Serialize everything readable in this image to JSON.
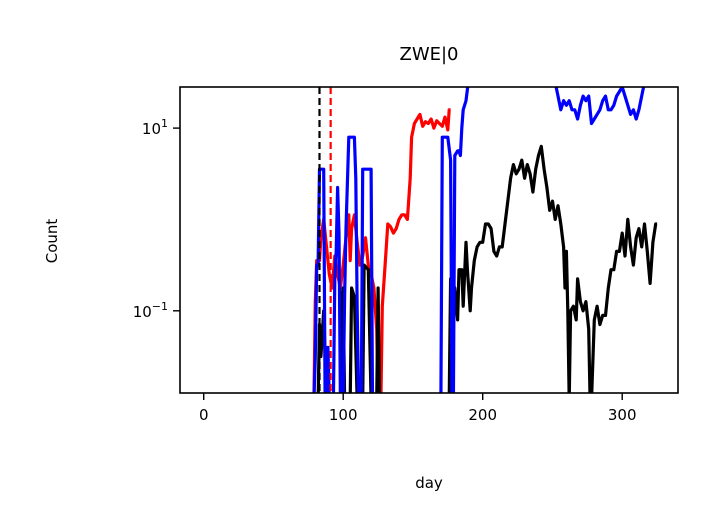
{
  "chart_data": {
    "type": "line",
    "title": "ZWE|0",
    "xlabel": "day",
    "ylabel": "Count",
    "xlim": [
      -17,
      340
    ],
    "ylim_log10": [
      -1.9,
      1.45
    ],
    "y_scale": "log",
    "grid": false,
    "legend": "none",
    "x_ticks": [
      {
        "value": 0,
        "label": "0"
      },
      {
        "value": 100,
        "label": "100"
      },
      {
        "value": 200,
        "label": "200"
      },
      {
        "value": 300,
        "label": "300"
      }
    ],
    "y_ticks": [
      {
        "log10": -1,
        "label": "10",
        "exp": "−1"
      },
      {
        "log10": 1,
        "label": "10",
        "exp": "1"
      }
    ],
    "vlines": [
      {
        "x": 83,
        "color": "#000000",
        "style": "dashed"
      },
      {
        "x": 91,
        "color": "#ff0000",
        "style": "dashed"
      }
    ],
    "series": [
      {
        "color": "#ff0000",
        "log10_points": [
          [
            0,
            -1.98
          ],
          [
            79,
            -1.98
          ],
          [
            80,
            -0.9
          ],
          [
            81,
            -0.45
          ],
          [
            82,
            -0.45
          ],
          [
            83,
            -0.45
          ],
          [
            84,
            -0.2
          ],
          [
            86,
            0
          ],
          [
            88,
            -0.3
          ],
          [
            90,
            -0.6
          ],
          [
            92,
            -0.75
          ],
          [
            94,
            -0.4
          ],
          [
            96,
            -0.6
          ],
          [
            98,
            -0.75
          ],
          [
            100,
            -0.5
          ],
          [
            102,
            -0.2
          ],
          [
            104,
            0.05
          ],
          [
            105,
            -0.45
          ],
          [
            106,
            -0.1
          ],
          [
            108,
            0.05
          ],
          [
            110,
            -0.25
          ],
          [
            112,
            -0.5
          ],
          [
            114,
            -0.4
          ],
          [
            116,
            -0.2
          ],
          [
            118,
            -0.5
          ],
          [
            120,
            -0.6
          ],
          [
            122,
            -0.75
          ],
          [
            124,
            -1.2
          ],
          [
            125,
            -1.98
          ],
          [
            127,
            -1.98
          ],
          [
            128,
            -0.95
          ],
          [
            130,
            -0.5
          ],
          [
            132,
            -0.05
          ],
          [
            134,
            -0.08
          ],
          [
            136,
            -0.15
          ],
          [
            138,
            -0.1
          ],
          [
            140,
            0
          ],
          [
            142,
            0.05
          ],
          [
            144,
            0.05
          ],
          [
            146,
            0
          ],
          [
            148,
            0.45
          ],
          [
            149,
            0.9
          ],
          [
            151,
            1.05
          ],
          [
            153,
            1.1
          ],
          [
            155,
            1.15
          ],
          [
            157,
            1.02
          ],
          [
            159,
            1.07
          ],
          [
            161,
            1.05
          ],
          [
            163,
            1.1
          ],
          [
            165,
            1.0
          ],
          [
            167,
            1.08
          ],
          [
            169,
            1.05
          ],
          [
            171,
            1.02
          ],
          [
            173,
            1.12
          ],
          [
            175,
            0.98
          ],
          [
            176,
            1.2
          ],
          [
            177,
            1.2
          ]
        ]
      },
      {
        "color": "#000000",
        "log10_points": [
          [
            0,
            -1.98
          ],
          [
            82,
            -1.98
          ],
          [
            83,
            -1.15
          ],
          [
            84,
            -1.5
          ],
          [
            86,
            -1.0
          ],
          [
            88,
            -1.98
          ],
          [
            98,
            -1.98
          ],
          [
            99,
            -0.85
          ],
          [
            100,
            -0.75
          ],
          [
            101,
            -1.98
          ],
          [
            105,
            -1.98
          ],
          [
            106,
            -0.75
          ],
          [
            108,
            -0.85
          ],
          [
            110,
            -1.98
          ],
          [
            114,
            -1.98
          ],
          [
            115,
            -0.5
          ],
          [
            118,
            -0.55
          ],
          [
            120,
            -1.98
          ],
          [
            124,
            -1.98
          ],
          [
            125,
            -0.75
          ],
          [
            126,
            -1.98
          ],
          [
            176,
            -1.98
          ],
          [
            177,
            -0.65
          ],
          [
            180,
            -0.75
          ],
          [
            182,
            -1.1
          ],
          [
            183,
            -0.55
          ],
          [
            185,
            -0.55
          ],
          [
            186,
            -0.95
          ],
          [
            188,
            -0.25
          ],
          [
            189,
            -0.55
          ],
          [
            191,
            -1.0
          ],
          [
            192,
            -0.75
          ],
          [
            194,
            -0.45
          ],
          [
            196,
            -0.3
          ],
          [
            198,
            -0.25
          ],
          [
            200,
            -0.25
          ],
          [
            202,
            -0.05
          ],
          [
            204,
            -0.05
          ],
          [
            206,
            -0.1
          ],
          [
            208,
            -0.35
          ],
          [
            210,
            -0.4
          ],
          [
            212,
            -0.3
          ],
          [
            214,
            -0.3
          ],
          [
            216,
            -0.05
          ],
          [
            218,
            0.2
          ],
          [
            220,
            0.45
          ],
          [
            222,
            0.6
          ],
          [
            224,
            0.5
          ],
          [
            226,
            0.55
          ],
          [
            228,
            0.65
          ],
          [
            230,
            0.45
          ],
          [
            232,
            0.6
          ],
          [
            234,
            0.5
          ],
          [
            236,
            0.3
          ],
          [
            238,
            0.55
          ],
          [
            240,
            0.7
          ],
          [
            242,
            0.8
          ],
          [
            244,
            0.55
          ],
          [
            246,
            0.35
          ],
          [
            248,
            0.1
          ],
          [
            250,
            0.2
          ],
          [
            252,
            0.0
          ],
          [
            254,
            0.15
          ],
          [
            256,
            -0.05
          ],
          [
            258,
            -0.3
          ],
          [
            259,
            -0.75
          ],
          [
            260,
            -0.35
          ],
          [
            261,
            -1.0
          ],
          [
            262,
            -1.98
          ],
          [
            263,
            -1.0
          ],
          [
            265,
            -0.95
          ],
          [
            267,
            -1.1
          ],
          [
            268,
            -0.65
          ],
          [
            270,
            -0.9
          ],
          [
            272,
            -1.0
          ],
          [
            274,
            -0.9
          ],
          [
            276,
            -1.2
          ],
          [
            277,
            -1.98
          ],
          [
            278,
            -1.98
          ],
          [
            280,
            -1.1
          ],
          [
            282,
            -0.95
          ],
          [
            284,
            -1.15
          ],
          [
            286,
            -1.05
          ],
          [
            288,
            -1.05
          ],
          [
            290,
            -0.75
          ],
          [
            292,
            -0.55
          ],
          [
            294,
            -0.55
          ],
          [
            296,
            -0.35
          ],
          [
            298,
            -0.35
          ],
          [
            300,
            -0.15
          ],
          [
            302,
            -0.4
          ],
          [
            304,
            0.0
          ],
          [
            306,
            -0.3
          ],
          [
            308,
            -0.5
          ],
          [
            310,
            -0.2
          ],
          [
            312,
            -0.1
          ],
          [
            314,
            -0.3
          ],
          [
            316,
            -0.05
          ],
          [
            318,
            -0.35
          ],
          [
            320,
            -0.7
          ],
          [
            322,
            -0.25
          ],
          [
            324,
            -0.05
          ],
          [
            325,
            -0.05
          ]
        ]
      },
      {
        "color": "#0000ff",
        "log10_points": [
          [
            0,
            -1.98
          ],
          [
            79,
            -1.98
          ],
          [
            80,
            -1.5
          ],
          [
            81,
            -0.5
          ],
          [
            82,
            -0.5
          ],
          [
            83,
            0.55
          ],
          [
            84,
            0.55
          ],
          [
            86,
            0.55
          ],
          [
            87,
            -1.98
          ],
          [
            88,
            -1.98
          ],
          [
            89,
            -1.4
          ],
          [
            90,
            -1.98
          ],
          [
            93,
            -1.98
          ],
          [
            94,
            -0.65
          ],
          [
            95,
            -0.35
          ],
          [
            96,
            0.35
          ],
          [
            97,
            -0.15
          ],
          [
            98,
            -1.98
          ],
          [
            100,
            -1.98
          ],
          [
            101,
            -0.85
          ],
          [
            102,
            -0.1
          ],
          [
            104,
            0.9
          ],
          [
            105,
            0.9
          ],
          [
            106,
            0.9
          ],
          [
            107,
            0.9
          ],
          [
            108,
            0.9
          ],
          [
            109,
            0.45
          ],
          [
            110,
            -1.0
          ],
          [
            111,
            -1.98
          ],
          [
            113,
            -1.98
          ],
          [
            114,
            0.55
          ],
          [
            116,
            0.55
          ],
          [
            118,
            0.55
          ],
          [
            120,
            0.55
          ],
          [
            121,
            -1.98
          ],
          [
            170,
            -1.98
          ],
          [
            171,
            0.9
          ],
          [
            173,
            0.9
          ],
          [
            175,
            0.9
          ],
          [
            177,
            0.65
          ],
          [
            178,
            -1.98
          ],
          [
            179,
            -1.98
          ],
          [
            180,
            0.7
          ],
          [
            182,
            0.75
          ],
          [
            183,
            0.75
          ],
          [
            184,
            0.7
          ],
          [
            185,
            1.0
          ],
          [
            186,
            1.2
          ],
          [
            188,
            1.3
          ],
          [
            190,
            1.55
          ],
          [
            192,
            1.55
          ],
          [
            194,
            1.8
          ],
          [
            196,
            2.0
          ],
          [
            198,
            1.95
          ],
          [
            200,
            1.95
          ],
          [
            202,
            2.1
          ],
          [
            204,
            2.05
          ],
          [
            206,
            2.1
          ],
          [
            208,
            2.2
          ],
          [
            210,
            2.15
          ],
          [
            212,
            2.2
          ],
          [
            214,
            2.4
          ],
          [
            216,
            2.55
          ],
          [
            218,
            2.6
          ],
          [
            220,
            2.5
          ],
          [
            222,
            2.2
          ],
          [
            224,
            2.1
          ],
          [
            226,
            2.0
          ],
          [
            228,
            2.05
          ],
          [
            230,
            2.0
          ],
          [
            232,
            2.1
          ],
          [
            234,
            2.2
          ],
          [
            236,
            2.15
          ],
          [
            238,
            2.1
          ],
          [
            240,
            2.2
          ],
          [
            242,
            2.0
          ],
          [
            244,
            2.1
          ],
          [
            246,
            2.0
          ],
          [
            248,
            1.85
          ],
          [
            250,
            1.85
          ],
          [
            252,
            1.5
          ],
          [
            254,
            1.35
          ],
          [
            256,
            1.2
          ],
          [
            258,
            1.3
          ],
          [
            260,
            1.25
          ],
          [
            262,
            1.3
          ],
          [
            264,
            1.2
          ],
          [
            266,
            1.2
          ],
          [
            268,
            1.1
          ],
          [
            270,
            1.25
          ],
          [
            272,
            1.35
          ],
          [
            274,
            1.3
          ],
          [
            276,
            1.35
          ],
          [
            278,
            1.05
          ],
          [
            280,
            1.1
          ],
          [
            282,
            1.15
          ],
          [
            284,
            1.2
          ],
          [
            286,
            1.3
          ],
          [
            288,
            1.35
          ],
          [
            290,
            1.2
          ],
          [
            292,
            1.2
          ],
          [
            294,
            1.25
          ],
          [
            296,
            1.35
          ],
          [
            298,
            1.4
          ],
          [
            300,
            1.45
          ],
          [
            302,
            1.35
          ],
          [
            304,
            1.25
          ],
          [
            306,
            1.15
          ],
          [
            308,
            1.2
          ],
          [
            310,
            1.1
          ],
          [
            312,
            1.2
          ],
          [
            314,
            1.35
          ],
          [
            316,
            1.5
          ],
          [
            318,
            1.6
          ],
          [
            320,
            1.65
          ],
          [
            322,
            1.7
          ],
          [
            324,
            1.75
          ],
          [
            325,
            1.75
          ]
        ]
      }
    ]
  }
}
